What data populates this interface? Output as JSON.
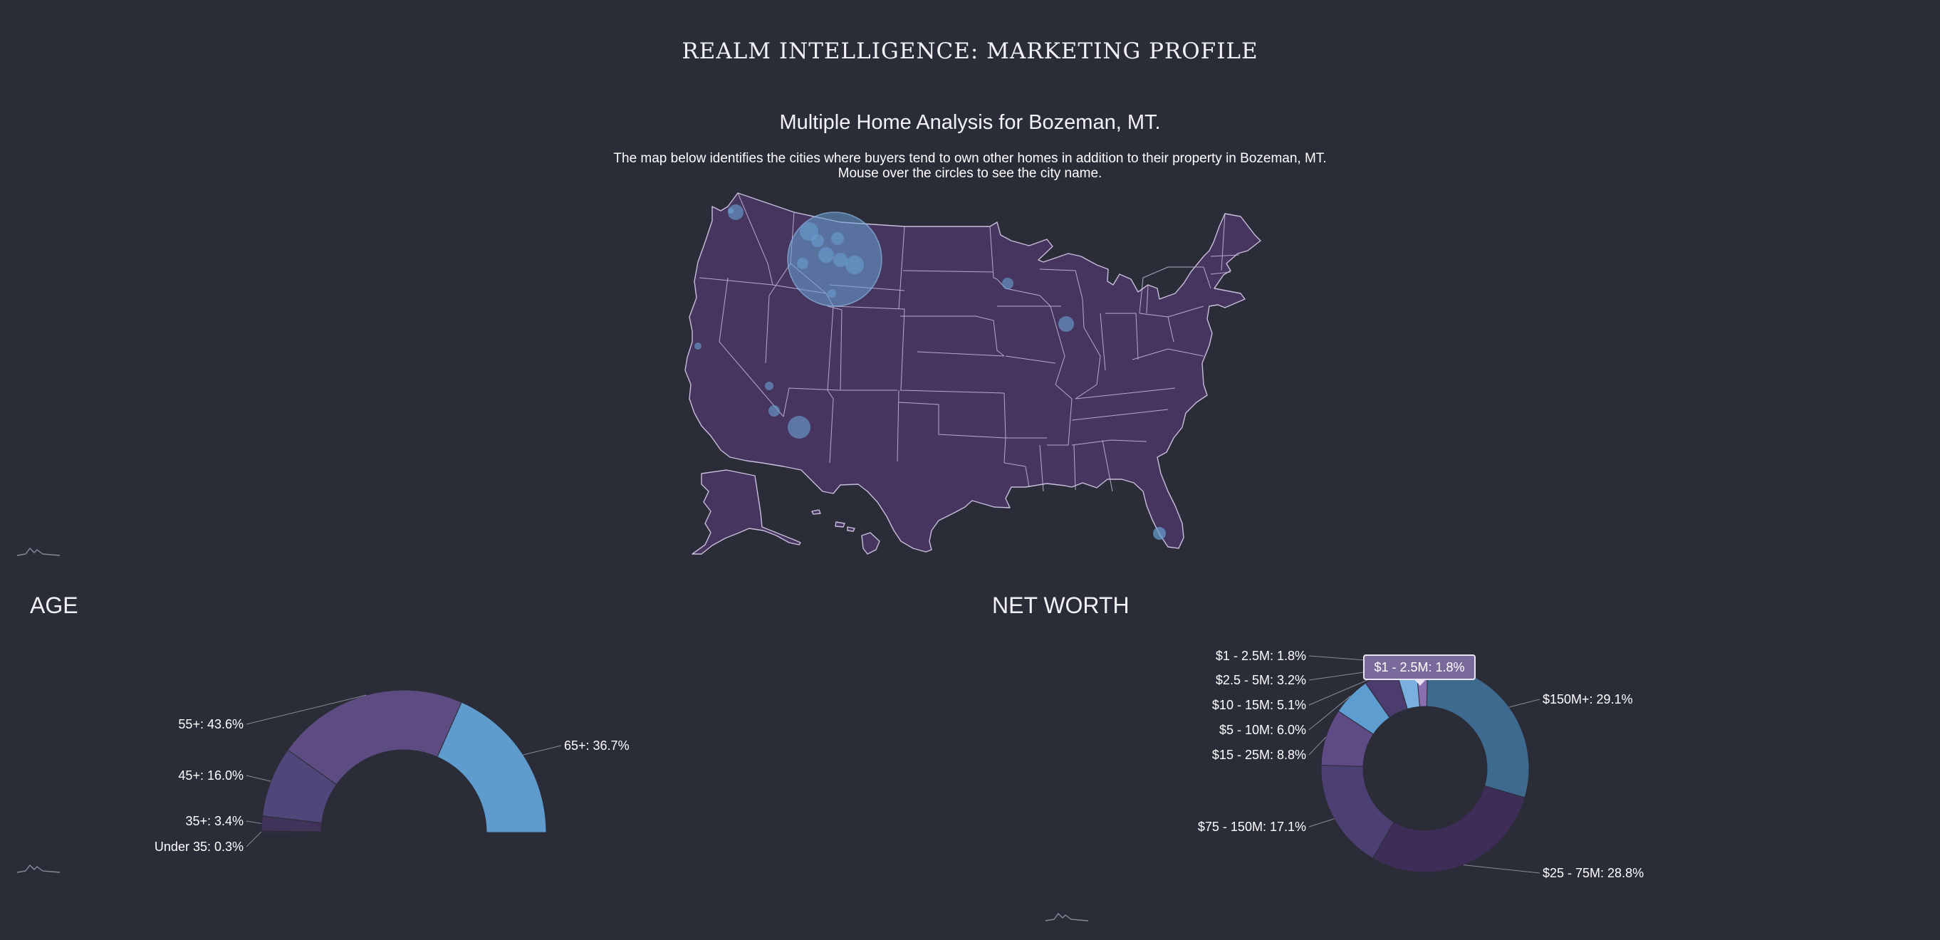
{
  "header": {
    "title": "REALM INTELLIGENCE: MARKETING PROFILE"
  },
  "map": {
    "title": "Multiple Home Analysis for Bozeman, MT.",
    "description_line1": "The map below identifies the cities where buyers tend to own other homes in addition to their property in Bozeman, MT.",
    "description_line2": "Mouse over the circles to see the city name.",
    "land_color": "#46355f",
    "bubble_color": "#6aa3d4"
  },
  "age": {
    "title": "AGE",
    "chart_data": {
      "type": "pie",
      "variant": "semi-donut",
      "slices": [
        {
          "label": "Under 35",
          "value": 0.3,
          "text": "Under 35: 0.3%",
          "color": "#3d3155"
        },
        {
          "label": "35+",
          "value": 3.4,
          "text": "35+: 3.4%",
          "color": "#40345a"
        },
        {
          "label": "45+",
          "value": 16.0,
          "text": "45+: 16.0%",
          "color": "#4f4679"
        },
        {
          "label": "55+",
          "value": 43.6,
          "text": "55+: 43.6%",
          "color": "#5d4c82"
        },
        {
          "label": "65+",
          "value": 36.7,
          "text": "65+: 36.7%",
          "color": "#5f9ccd"
        }
      ]
    }
  },
  "net_worth": {
    "title": "NET WORTH",
    "tooltip": "$1 - 2.5M: 1.8%",
    "chart_data": {
      "type": "pie",
      "variant": "donut",
      "slices": [
        {
          "label": "$1 - 2.5M",
          "value": 1.8,
          "text": "$1 - 2.5M: 1.8%",
          "color": "#8a6fae"
        },
        {
          "label": "$150M+",
          "value": 29.1,
          "text": "$150M+: 29.1%",
          "color": "#3f6a90"
        },
        {
          "label": "$25 - 75M",
          "value": 28.8,
          "text": "$25 - 75M: 28.8%",
          "color": "#3e2e57"
        },
        {
          "label": "$75 - 150M",
          "value": 17.1,
          "text": "$75 - 150M: 17.1%",
          "color": "#4c3f72"
        },
        {
          "label": "$15 - 25M",
          "value": 8.8,
          "text": "$15 - 25M: 8.8%",
          "color": "#5f4a86"
        },
        {
          "label": "$5 - 10M",
          "value": 6.0,
          "text": "$5 - 10M: 6.0%",
          "color": "#5e9dd0"
        },
        {
          "label": "$10 - 15M",
          "value": 5.1,
          "text": "$10 - 15M: 5.1%",
          "color": "#4c3c6d"
        },
        {
          "label": "$2.5 - 5M",
          "value": 3.2,
          "text": "$2.5 - 5M: 3.2%",
          "color": "#7ab0e0"
        }
      ]
    }
  }
}
